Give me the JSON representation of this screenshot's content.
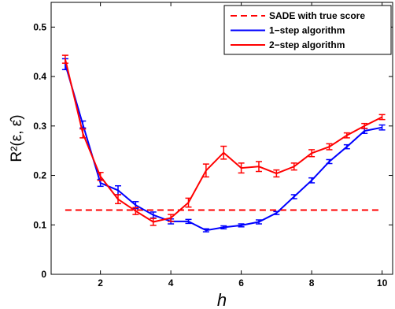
{
  "chart_data": {
    "type": "line",
    "xlabel": "h",
    "ylabel": "R²(ε, ε̂)",
    "xlim": [
      0.6,
      10.3
    ],
    "ylim": [
      0,
      0.55
    ],
    "xticks": [
      2,
      4,
      6,
      8,
      10
    ],
    "yticks": [
      0,
      0.1,
      0.2,
      0.3,
      0.4,
      0.5
    ],
    "grid": false,
    "legend_position": "top-right",
    "x": [
      1,
      1.5,
      2,
      2.5,
      3,
      3.5,
      4,
      4.5,
      5,
      5.5,
      6,
      6.5,
      7,
      7.5,
      8,
      8.5,
      9,
      9.5,
      10
    ],
    "series": [
      {
        "name": "SADE with true score",
        "style": "dashed",
        "color": "#ff0000",
        "x": [
          1,
          10
        ],
        "values": [
          0.13,
          0.13
        ]
      },
      {
        "name": "1−step algorithm",
        "style": "solid",
        "color": "#0000ff",
        "values": [
          0.425,
          0.303,
          0.185,
          0.17,
          0.14,
          0.12,
          0.107,
          0.107,
          0.089,
          0.095,
          0.099,
          0.106,
          0.124,
          0.157,
          0.19,
          0.228,
          0.258,
          0.29,
          0.297
        ],
        "errors": [
          0.011,
          0.007,
          0.007,
          0.009,
          0.007,
          0.006,
          0.005,
          0.004,
          0.003,
          0.003,
          0.003,
          0.004,
          0.003,
          0.004,
          0.005,
          0.004,
          0.004,
          0.005,
          0.005
        ]
      },
      {
        "name": "2−step algorithm",
        "style": "solid",
        "color": "#ff0000",
        "values": [
          0.435,
          0.285,
          0.198,
          0.152,
          0.128,
          0.106,
          0.114,
          0.145,
          0.21,
          0.246,
          0.215,
          0.218,
          0.204,
          0.218,
          0.245,
          0.258,
          0.281,
          0.3,
          0.318
        ],
        "errors": [
          0.008,
          0.009,
          0.008,
          0.009,
          0.007,
          0.007,
          0.007,
          0.009,
          0.013,
          0.013,
          0.01,
          0.01,
          0.007,
          0.007,
          0.007,
          0.006,
          0.005,
          0.005,
          0.005
        ]
      }
    ]
  },
  "legend": {
    "items": [
      {
        "label": "SADE with true score",
        "color": "#ff0000",
        "style": "dashed"
      },
      {
        "label": "1−step algorithm",
        "color": "#0000ff",
        "style": "solid"
      },
      {
        "label": "2−step algorithm",
        "color": "#ff0000",
        "style": "solid"
      }
    ]
  }
}
